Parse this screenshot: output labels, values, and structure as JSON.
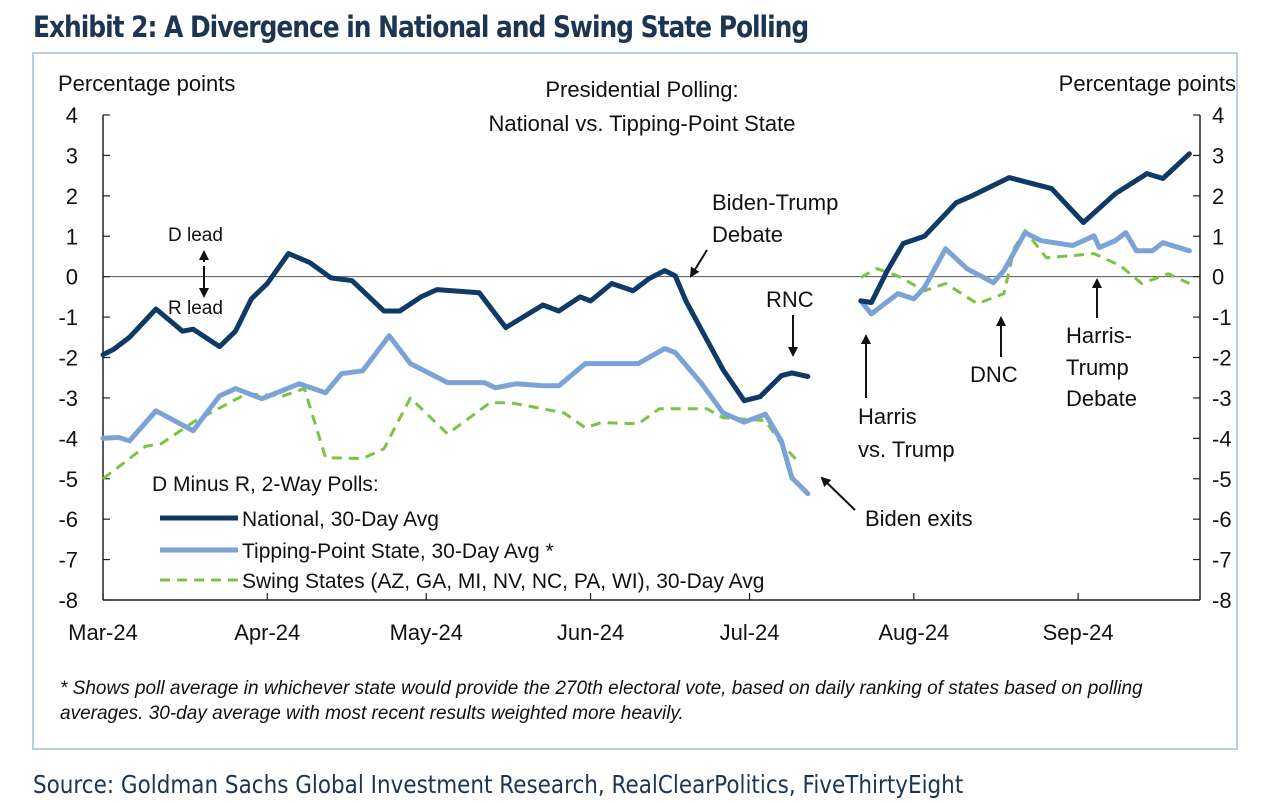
{
  "title": "Exhibit 2: A Divergence in National and Swing State Polling",
  "source": "Source: Goldman Sachs Global Investment Research, RealClearPolitics, FiveThirtyEight",
  "footnote": "* Shows poll average in whichever state would provide the 270th electoral vote, based on daily ranking of states based on polling averages. 30-day average with most recent results weighted more heavily.",
  "chart_data": {
    "type": "line",
    "title": [
      "Presidential Polling:",
      "National vs. Tipping-Point  State"
    ],
    "ylabel_left": "Percentage  points",
    "ylabel_right": "Percentage  points",
    "ylim": [
      -8,
      4
    ],
    "yticks": [
      4,
      3,
      2,
      1,
      0,
      -1,
      -2,
      -3,
      -4,
      -5,
      -6,
      -7,
      -8
    ],
    "xlim": [
      "2024-03-01",
      "2024-09-24"
    ],
    "xticks": [
      {
        "date": "2024-03-01",
        "label": "Mar-24"
      },
      {
        "date": "2024-04-01",
        "label": "Apr-24"
      },
      {
        "date": "2024-05-01",
        "label": "May-24"
      },
      {
        "date": "2024-06-01",
        "label": "Jun-24"
      },
      {
        "date": "2024-07-01",
        "label": "Jul-24"
      },
      {
        "date": "2024-08-01",
        "label": "Aug-24"
      },
      {
        "date": "2024-09-01",
        "label": "Sep-24"
      }
    ],
    "grid": false,
    "legend_title": "D Minus R, 2-Way Polls:",
    "legend_position": "bottom-left",
    "series": [
      {
        "name": "National, 30-Day Avg",
        "color": "#0f3a66",
        "style": "solid-thick",
        "segments": [
          [
            [
              "2024-03-01",
              -1.93
            ],
            [
              "2024-03-03",
              -1.8
            ],
            [
              "2024-03-06",
              -1.5
            ],
            [
              "2024-03-11",
              -0.8
            ],
            [
              "2024-03-16",
              -1.35
            ],
            [
              "2024-03-18",
              -1.3
            ],
            [
              "2024-03-23",
              -1.73
            ],
            [
              "2024-03-26",
              -1.35
            ],
            [
              "2024-03-29",
              -0.55
            ],
            [
              "2024-04-01",
              -0.17
            ],
            [
              "2024-04-05",
              0.57
            ],
            [
              "2024-04-09",
              0.35
            ],
            [
              "2024-04-13",
              -0.03
            ],
            [
              "2024-04-17",
              -0.1
            ],
            [
              "2024-04-23",
              -0.85
            ],
            [
              "2024-04-26",
              -0.85
            ],
            [
              "2024-04-30",
              -0.5
            ],
            [
              "2024-05-03",
              -0.32
            ],
            [
              "2024-05-11",
              -0.4
            ],
            [
              "2024-05-16",
              -1.26
            ],
            [
              "2024-05-23",
              -0.7
            ],
            [
              "2024-05-26",
              -0.85
            ],
            [
              "2024-05-30",
              -0.5
            ],
            [
              "2024-06-01",
              -0.6
            ],
            [
              "2024-06-05",
              -0.17
            ],
            [
              "2024-06-09",
              -0.35
            ],
            [
              "2024-06-12",
              -0.05
            ],
            [
              "2024-06-15",
              0.15
            ],
            [
              "2024-06-17",
              0.02
            ],
            [
              "2024-06-19",
              -0.6
            ],
            [
              "2024-06-22",
              -1.33
            ],
            [
              "2024-06-26",
              -2.3
            ],
            [
              "2024-06-30",
              -3.07
            ],
            [
              "2024-07-03",
              -2.97
            ],
            [
              "2024-07-07",
              -2.45
            ],
            [
              "2024-07-09",
              -2.38
            ],
            [
              "2024-07-12",
              -2.47
            ]
          ],
          [
            [
              "2024-07-22",
              -0.6
            ],
            [
              "2024-07-24",
              -0.64
            ],
            [
              "2024-07-27",
              0.15
            ],
            [
              "2024-07-30",
              0.82
            ],
            [
              "2024-08-03",
              1.0
            ],
            [
              "2024-08-09",
              1.83
            ],
            [
              "2024-08-12",
              2.0
            ],
            [
              "2024-08-19",
              2.45
            ],
            [
              "2024-08-27",
              2.18
            ],
            [
              "2024-09-02",
              1.34
            ],
            [
              "2024-09-08",
              2.05
            ],
            [
              "2024-09-14",
              2.55
            ],
            [
              "2024-09-17",
              2.43
            ],
            [
              "2024-09-22",
              3.04
            ]
          ]
        ]
      },
      {
        "name": "Tipping-Point State, 30-Day Avg *",
        "color": "#7ba3d6",
        "style": "solid-thick",
        "segments": [
          [
            [
              "2024-03-01",
              -4.0
            ],
            [
              "2024-03-04",
              -3.98
            ],
            [
              "2024-03-06",
              -4.06
            ],
            [
              "2024-03-11",
              -3.32
            ],
            [
              "2024-03-18",
              -3.81
            ],
            [
              "2024-03-23",
              -2.95
            ],
            [
              "2024-03-26",
              -2.77
            ],
            [
              "2024-03-31",
              -3.02
            ],
            [
              "2024-04-07",
              -2.65
            ],
            [
              "2024-04-12",
              -2.87
            ],
            [
              "2024-04-15",
              -2.4
            ],
            [
              "2024-04-19",
              -2.33
            ],
            [
              "2024-04-24",
              -1.46
            ],
            [
              "2024-04-28",
              -2.15
            ],
            [
              "2024-05-05",
              -2.62
            ],
            [
              "2024-05-12",
              -2.62
            ],
            [
              "2024-05-14",
              -2.75
            ],
            [
              "2024-05-18",
              -2.65
            ],
            [
              "2024-05-23",
              -2.7
            ],
            [
              "2024-05-26",
              -2.7
            ],
            [
              "2024-05-31",
              -2.15
            ],
            [
              "2024-06-10",
              -2.15
            ],
            [
              "2024-06-15",
              -1.78
            ],
            [
              "2024-06-17",
              -1.88
            ],
            [
              "2024-06-22",
              -2.65
            ],
            [
              "2024-06-26",
              -3.37
            ],
            [
              "2024-06-30",
              -3.6
            ],
            [
              "2024-07-04",
              -3.4
            ],
            [
              "2024-07-07",
              -4.06
            ],
            [
              "2024-07-09",
              -4.98
            ],
            [
              "2024-07-12",
              -5.37
            ]
          ],
          [
            [
              "2024-07-22",
              -0.6
            ],
            [
              "2024-07-24",
              -0.92
            ],
            [
              "2024-07-29",
              -0.42
            ],
            [
              "2024-08-01",
              -0.55
            ],
            [
              "2024-08-03",
              -0.27
            ],
            [
              "2024-08-07",
              0.69
            ],
            [
              "2024-08-11",
              0.2
            ],
            [
              "2024-08-16",
              -0.15
            ],
            [
              "2024-08-18",
              0.15
            ],
            [
              "2024-08-22",
              1.09
            ],
            [
              "2024-08-25",
              0.89
            ],
            [
              "2024-08-31",
              0.77
            ],
            [
              "2024-09-04",
              1.01
            ],
            [
              "2024-09-05",
              0.72
            ],
            [
              "2024-09-08",
              0.89
            ],
            [
              "2024-09-10",
              1.09
            ],
            [
              "2024-09-12",
              0.64
            ],
            [
              "2024-09-15",
              0.64
            ],
            [
              "2024-09-17",
              0.84
            ],
            [
              "2024-09-22",
              0.64
            ]
          ]
        ]
      },
      {
        "name": "Swing States (AZ, GA, MI, NV, NC, PA, WI), 30-Day Avg",
        "color": "#7dc242",
        "style": "dashed",
        "segments": [
          [
            [
              "2024-03-01",
              -5.0
            ],
            [
              "2024-03-09",
              -4.2
            ],
            [
              "2024-03-12",
              -4.13
            ],
            [
              "2024-03-18",
              -3.6
            ],
            [
              "2024-03-28",
              -2.9
            ],
            [
              "2024-04-04",
              -2.95
            ],
            [
              "2024-04-08",
              -2.77
            ],
            [
              "2024-04-12",
              -4.48
            ],
            [
              "2024-04-19",
              -4.5
            ],
            [
              "2024-04-23",
              -4.26
            ],
            [
              "2024-04-28",
              -3.0
            ],
            [
              "2024-05-05",
              -3.89
            ],
            [
              "2024-05-13",
              -3.12
            ],
            [
              "2024-05-17",
              -3.12
            ],
            [
              "2024-05-23",
              -3.27
            ],
            [
              "2024-05-27",
              -3.37
            ],
            [
              "2024-05-31",
              -3.74
            ],
            [
              "2024-06-03",
              -3.61
            ],
            [
              "2024-06-10",
              -3.64
            ],
            [
              "2024-06-14",
              -3.27
            ],
            [
              "2024-06-23",
              -3.27
            ],
            [
              "2024-06-26",
              -3.49
            ],
            [
              "2024-07-04",
              -3.56
            ],
            [
              "2024-07-07",
              -4.13
            ],
            [
              "2024-07-10",
              -4.55
            ]
          ],
          [
            [
              "2024-07-22",
              -0.02
            ],
            [
              "2024-07-25",
              0.2
            ],
            [
              "2024-07-29",
              0.02
            ],
            [
              "2024-08-03",
              -0.35
            ],
            [
              "2024-08-07",
              -0.17
            ],
            [
              "2024-08-13",
              -0.67
            ],
            [
              "2024-08-18",
              -0.42
            ],
            [
              "2024-08-20",
              0.72
            ],
            [
              "2024-08-22",
              1.14
            ],
            [
              "2024-08-26",
              0.47
            ],
            [
              "2024-08-31",
              0.52
            ],
            [
              "2024-09-04",
              0.57
            ],
            [
              "2024-09-09",
              0.27
            ],
            [
              "2024-09-13",
              -0.17
            ],
            [
              "2024-09-18",
              0.07
            ],
            [
              "2024-09-22",
              -0.17
            ]
          ]
        ]
      }
    ],
    "annotations": {
      "d_lead": "D lead",
      "r_lead": "R lead",
      "biden_trump_debate": [
        "Biden-Trump",
        "Debate"
      ],
      "rnc": "RNC",
      "biden_exits": "Biden exits",
      "harris_vs_trump": [
        "Harris",
        "vs. Trump"
      ],
      "dnc": "DNC",
      "harris_trump_debate": [
        "Harris-",
        "Trump",
        "Debate"
      ]
    }
  }
}
